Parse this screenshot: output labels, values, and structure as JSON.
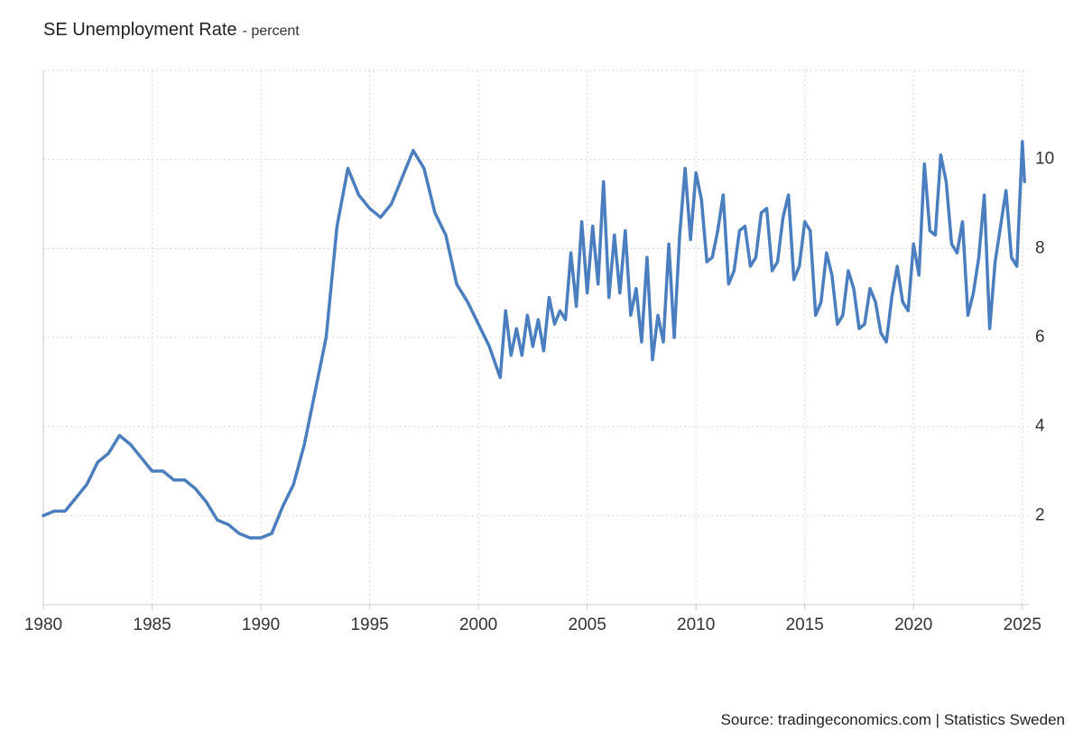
{
  "chart_data": {
    "type": "line",
    "title": "SE Unemployment Rate",
    "subtitle": "- percent",
    "source": "Source: tradingeconomics.com | Statistics Sweden",
    "color": "#4a7ebf",
    "grid": true,
    "xlim": [
      1980,
      2025.3
    ],
    "ylim": [
      0,
      12
    ],
    "xticks": [
      1980,
      1985,
      1990,
      1995,
      2000,
      2005,
      2010,
      2015,
      2020,
      2025
    ],
    "yticks": [
      2,
      4,
      6,
      8,
      10
    ],
    "x": [
      1980.0,
      1980.5,
      1981.0,
      1981.5,
      1982.0,
      1982.5,
      1983.0,
      1983.5,
      1984.0,
      1984.5,
      1985.0,
      1985.5,
      1986.0,
      1986.5,
      1987.0,
      1987.5,
      1988.0,
      1988.5,
      1989.0,
      1989.5,
      1990.0,
      1990.5,
      1991.0,
      1991.5,
      1992.0,
      1992.5,
      1993.0,
      1993.5,
      1994.0,
      1994.5,
      1995.0,
      1995.5,
      1996.0,
      1996.5,
      1997.0,
      1997.5,
      1998.0,
      1998.5,
      1999.0,
      1999.5,
      2000.0,
      2000.5,
      2001.0,
      2001.25,
      2001.5,
      2001.75,
      2002.0,
      2002.25,
      2002.5,
      2002.75,
      2003.0,
      2003.25,
      2003.5,
      2003.75,
      2004.0,
      2004.25,
      2004.5,
      2004.75,
      2005.0,
      2005.25,
      2005.5,
      2005.75,
      2006.0,
      2006.25,
      2006.5,
      2006.75,
      2007.0,
      2007.25,
      2007.5,
      2007.75,
      2008.0,
      2008.25,
      2008.5,
      2008.75,
      2009.0,
      2009.25,
      2009.5,
      2009.75,
      2010.0,
      2010.25,
      2010.5,
      2010.75,
      2011.0,
      2011.25,
      2011.5,
      2011.75,
      2012.0,
      2012.25,
      2012.5,
      2012.75,
      2013.0,
      2013.25,
      2013.5,
      2013.75,
      2014.0,
      2014.25,
      2014.5,
      2014.75,
      2015.0,
      2015.25,
      2015.5,
      2015.75,
      2016.0,
      2016.25,
      2016.5,
      2016.75,
      2017.0,
      2017.25,
      2017.5,
      2017.75,
      2018.0,
      2018.25,
      2018.5,
      2018.75,
      2019.0,
      2019.25,
      2019.5,
      2019.75,
      2020.0,
      2020.25,
      2020.5,
      2020.75,
      2021.0,
      2021.25,
      2021.5,
      2021.75,
      2022.0,
      2022.25,
      2022.5,
      2022.75,
      2023.0,
      2023.25,
      2023.5,
      2023.75,
      2024.0,
      2024.25,
      2024.5,
      2024.75,
      2025.0,
      2025.1
    ],
    "values": [
      2.0,
      2.1,
      2.1,
      2.4,
      2.7,
      3.2,
      3.4,
      3.8,
      3.6,
      3.3,
      3.0,
      3.0,
      2.8,
      2.8,
      2.6,
      2.3,
      1.9,
      1.8,
      1.6,
      1.5,
      1.5,
      1.6,
      2.2,
      2.7,
      3.6,
      4.8,
      6.0,
      8.5,
      9.8,
      9.2,
      8.9,
      8.7,
      9.0,
      9.6,
      10.2,
      9.8,
      8.8,
      8.3,
      7.2,
      6.8,
      6.3,
      5.8,
      5.1,
      6.6,
      5.6,
      6.2,
      5.6,
      6.5,
      5.8,
      6.4,
      5.7,
      6.9,
      6.3,
      6.6,
      6.4,
      7.9,
      6.7,
      8.6,
      7.0,
      8.5,
      7.2,
      9.5,
      6.9,
      8.3,
      7.0,
      8.4,
      6.5,
      7.1,
      5.9,
      7.8,
      5.5,
      6.5,
      5.9,
      8.1,
      6.0,
      8.3,
      9.8,
      8.2,
      9.7,
      9.1,
      7.7,
      7.8,
      8.4,
      9.2,
      7.2,
      7.5,
      8.4,
      8.5,
      7.6,
      7.8,
      8.8,
      8.9,
      7.5,
      7.7,
      8.7,
      9.2,
      7.3,
      7.6,
      8.6,
      8.4,
      6.5,
      6.8,
      7.9,
      7.4,
      6.3,
      6.5,
      7.5,
      7.1,
      6.2,
      6.3,
      7.1,
      6.8,
      6.1,
      5.9,
      6.9,
      7.6,
      6.8,
      6.6,
      8.1,
      7.4,
      9.9,
      8.4,
      8.3,
      10.1,
      9.5,
      8.1,
      7.9,
      8.6,
      6.5,
      7.0,
      7.8,
      9.2,
      6.2,
      7.7,
      8.5,
      9.3,
      7.8,
      7.6,
      10.4,
      9.5
    ]
  }
}
